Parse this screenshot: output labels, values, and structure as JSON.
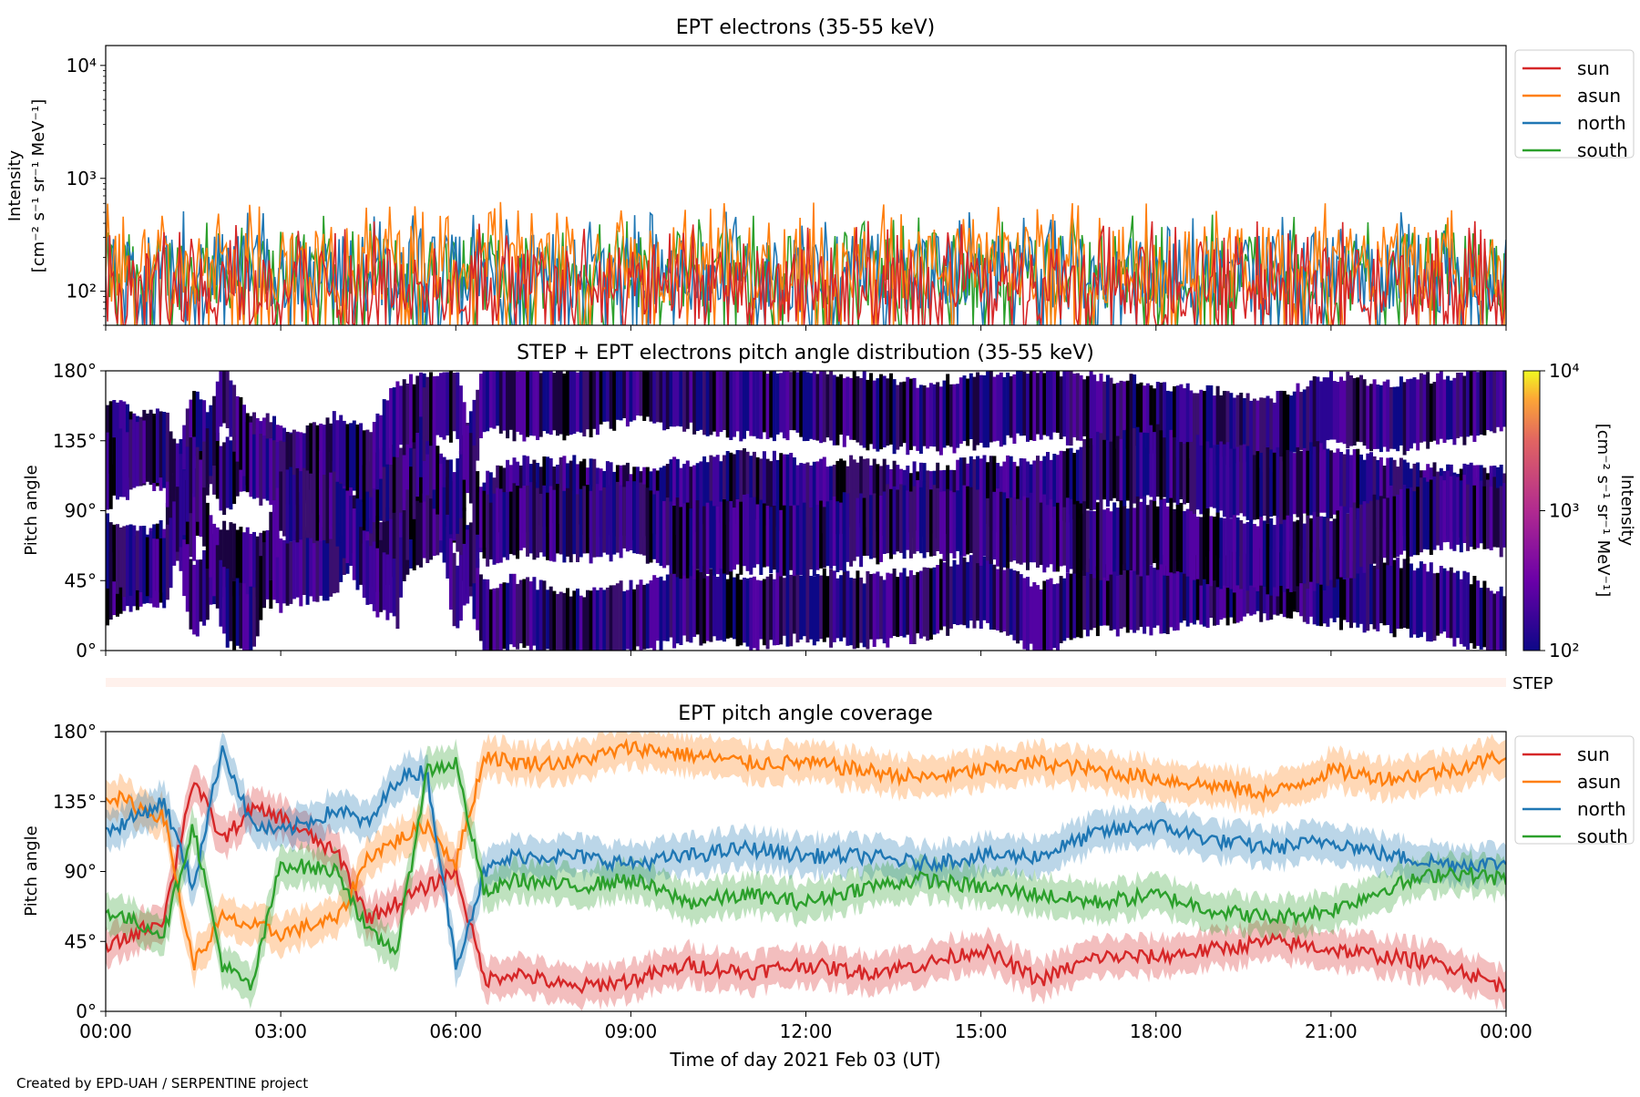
{
  "footer": "Created by EPD-UAH / SERPENTINE project",
  "colors": {
    "sun": "#d62728",
    "asun": "#ff7f0e",
    "north": "#1f77b4",
    "south": "#2ca02c",
    "step_bar": "#fff1ec"
  },
  "chart_data": [
    {
      "type": "line",
      "title": "EPT electrons (35-55 keV)",
      "ylabel": [
        "Intensity",
        "[cm⁻² s⁻¹ sr⁻¹ MeV⁻¹]"
      ],
      "yscale": "log",
      "ylim": [
        50,
        15000
      ],
      "ytick_values": [
        100,
        1000,
        10000
      ],
      "ytick_labels": [
        "10²",
        "10³",
        "10⁴"
      ],
      "xlim": [
        "2021-02-03 00:00",
        "2021-02-04 00:00"
      ],
      "legend": {
        "placement": "upper-right-outside",
        "entries": [
          "sun",
          "asun",
          "north",
          "south"
        ]
      },
      "series": [
        {
          "name": "south",
          "typical": 150,
          "peak": 480
        },
        {
          "name": "north",
          "typical": 145,
          "peak": 520
        },
        {
          "name": "asun",
          "typical": 170,
          "peak": 620
        },
        {
          "name": "sun",
          "typical": 110,
          "peak": 420
        }
      ]
    },
    {
      "type": "heatmap",
      "title": "STEP + EPT electrons pitch angle distribution (35-55 keV)",
      "ylabel": "Pitch angle",
      "ylim": [
        0,
        180
      ],
      "ytick_values": [
        0,
        45,
        90,
        135,
        180
      ],
      "ytick_labels": [
        "0°",
        "45°",
        "90°",
        "135°",
        "180°"
      ],
      "xlim": [
        "2021-02-03 00:00",
        "2021-02-04 00:00"
      ],
      "colorbar": {
        "label": [
          "Intensity",
          "[cm⁻² s⁻¹ sr⁻¹ MeV⁻¹]"
        ],
        "scale": "log",
        "range": [
          100,
          10000
        ],
        "tick_values": [
          100,
          1000,
          10000
        ],
        "tick_labels": [
          "10²",
          "10³",
          "10⁴"
        ],
        "colormap": "plasma-like"
      }
    },
    {
      "type": "bar",
      "label": "STEP",
      "xlim": [
        "2021-02-03 00:00",
        "2021-02-04 00:00"
      ]
    },
    {
      "type": "line",
      "title": "EPT pitch angle coverage",
      "ylabel": "Pitch angle",
      "xlabel": "Time of day 2021 Feb 03 (UT)",
      "ylim": [
        0,
        180
      ],
      "ytick_values": [
        0,
        45,
        90,
        135,
        180
      ],
      "ytick_labels": [
        "0°",
        "45°",
        "90°",
        "135°",
        "180°"
      ],
      "xticks": [
        "00:00",
        "03:00",
        "06:00",
        "09:00",
        "12:00",
        "15:00",
        "18:00",
        "21:00",
        "00:00"
      ],
      "xlim": [
        "2021-02-03 00:00",
        "2021-02-04 00:00"
      ],
      "band_halfwidth": 12,
      "legend": {
        "placement": "upper-right-outside",
        "entries": [
          "sun",
          "asun",
          "north",
          "south"
        ]
      },
      "x_hours": [
        0,
        1,
        1.5,
        2,
        2.5,
        3,
        4,
        4.5,
        5,
        5.5,
        6,
        6.5,
        7,
        8,
        9,
        10,
        11,
        12,
        13,
        14,
        15,
        16,
        17,
        18,
        19,
        20,
        21,
        22,
        23,
        24
      ],
      "series": [
        {
          "name": "sun",
          "values": [
            40,
            60,
            150,
            110,
            130,
            125,
            100,
            60,
            70,
            80,
            90,
            20,
            25,
            15,
            20,
            30,
            25,
            30,
            25,
            30,
            40,
            20,
            35,
            35,
            40,
            45,
            40,
            35,
            30,
            15
          ]
        },
        {
          "name": "asun",
          "values": [
            140,
            125,
            30,
            60,
            55,
            50,
            60,
            100,
            110,
            120,
            95,
            165,
            160,
            160,
            170,
            165,
            160,
            160,
            155,
            150,
            155,
            160,
            155,
            150,
            145,
            140,
            155,
            150,
            155,
            165
          ]
        },
        {
          "name": "north",
          "values": [
            115,
            135,
            80,
            170,
            120,
            115,
            130,
            120,
            150,
            155,
            30,
            90,
            100,
            100,
            95,
            100,
            105,
            100,
            100,
            95,
            100,
            100,
            115,
            120,
            110,
            105,
            110,
            100,
            95,
            95
          ]
        },
        {
          "name": "south",
          "values": [
            65,
            50,
            120,
            30,
            15,
            95,
            90,
            50,
            40,
            155,
            160,
            75,
            85,
            80,
            85,
            70,
            75,
            70,
            80,
            85,
            80,
            75,
            70,
            75,
            65,
            60,
            65,
            80,
            90,
            85
          ]
        }
      ]
    }
  ]
}
